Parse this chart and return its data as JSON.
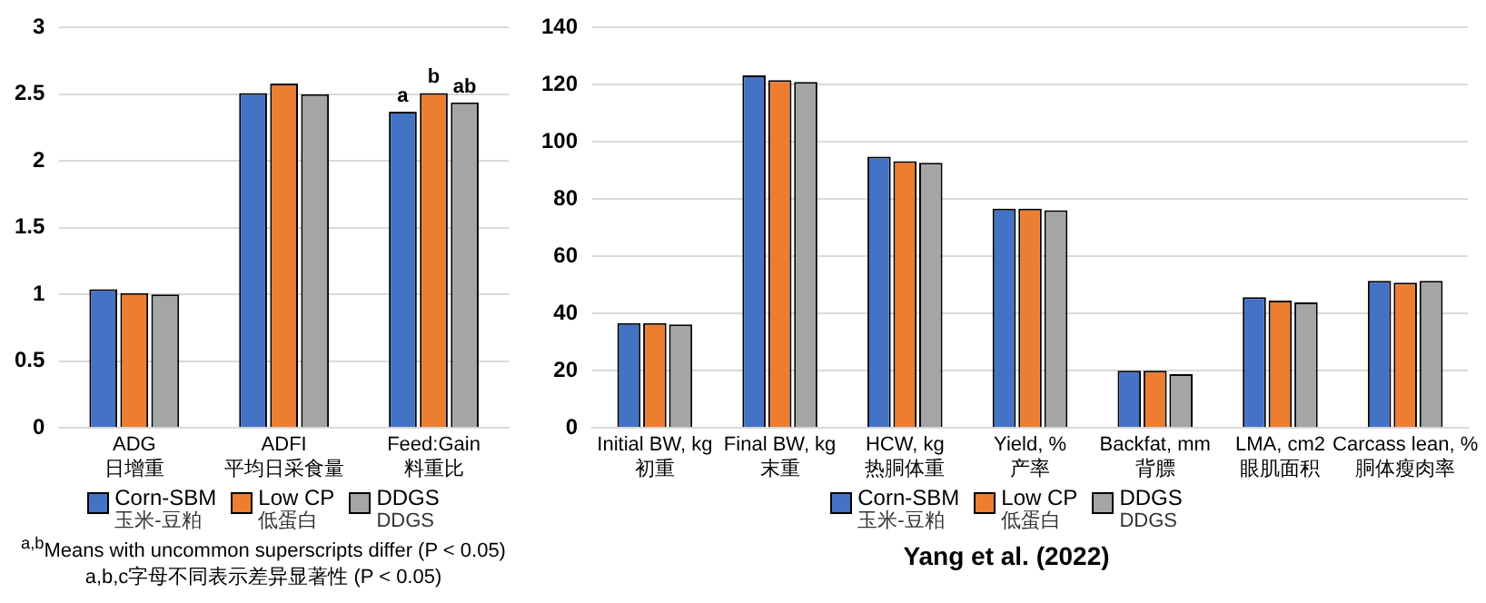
{
  "chart_data": [
    {
      "type": "bar",
      "categories": [
        "ADG\n日增重",
        "ADFI\n平均日采食量",
        "Feed:Gain\n料重比"
      ],
      "series": [
        {
          "name": "Corn-SBM\n玉米-豆粕",
          "color": "#4472c4",
          "values": [
            1.04,
            2.51,
            2.37
          ],
          "value_labels": [
            null,
            null,
            "a"
          ]
        },
        {
          "name": "Low CP\n低蛋白",
          "color": "#ed7d31",
          "values": [
            1.01,
            2.58,
            2.51
          ],
          "value_labels": [
            null,
            null,
            "b"
          ]
        },
        {
          "name": "DDGS\nDDGS",
          "color": "#a5a5a5",
          "values": [
            1.0,
            2.5,
            2.44
          ],
          "value_labels": [
            null,
            null,
            "ab"
          ]
        }
      ],
      "ylim": [
        0,
        3
      ],
      "yticks": [
        0,
        {
          "value": 0.5,
          "label": "0.5"
        },
        1,
        {
          "value": 1.5,
          "label": "1.5"
        },
        2,
        {
          "value": 2.5,
          "label": "2.5"
        },
        3
      ],
      "grid": "y",
      "legend": "bottom",
      "annotations": [
        "$^{a,b}$Means with uncommon superscripts differ (P < 0.05)",
        "a,b,c字母不同表示差异显著性 (P < 0.05)"
      ]
    },
    {
      "type": "bar",
      "categories": [
        "Initial BW, kg\n初重",
        "Final BW, kg\n末重",
        "HCW, kg\n热胴体重",
        "Yield, %\n产率",
        "Backfat, mm\n背膘",
        "LMA, cm2\n眼肌面积",
        "Carcass lean, %\n胴体瘦肉率"
      ],
      "series": [
        {
          "name": "Corn-SBM\n玉米-豆粕",
          "color": "#4472c4",
          "values": [
            36.7,
            123.3,
            94.9,
            76.7,
            20,
            45.7,
            51.4
          ]
        },
        {
          "name": "Low CP\n低蛋白",
          "color": "#ed7d31",
          "values": [
            36.7,
            121.6,
            93.3,
            76.7,
            20,
            44.5,
            50.8
          ]
        },
        {
          "name": "DDGS\nDDGS",
          "color": "#a5a5a5",
          "values": [
            36.2,
            121.0,
            92.7,
            76.1,
            18.8,
            43.9,
            51.4
          ]
        }
      ],
      "ylim": [
        0,
        140
      ],
      "yticks": [
        0,
        20,
        40,
        60,
        80,
        100,
        120,
        140
      ],
      "grid": "y",
      "legend": "bottom",
      "annotations": [
        "Yang et al. (2022)"
      ]
    }
  ]
}
